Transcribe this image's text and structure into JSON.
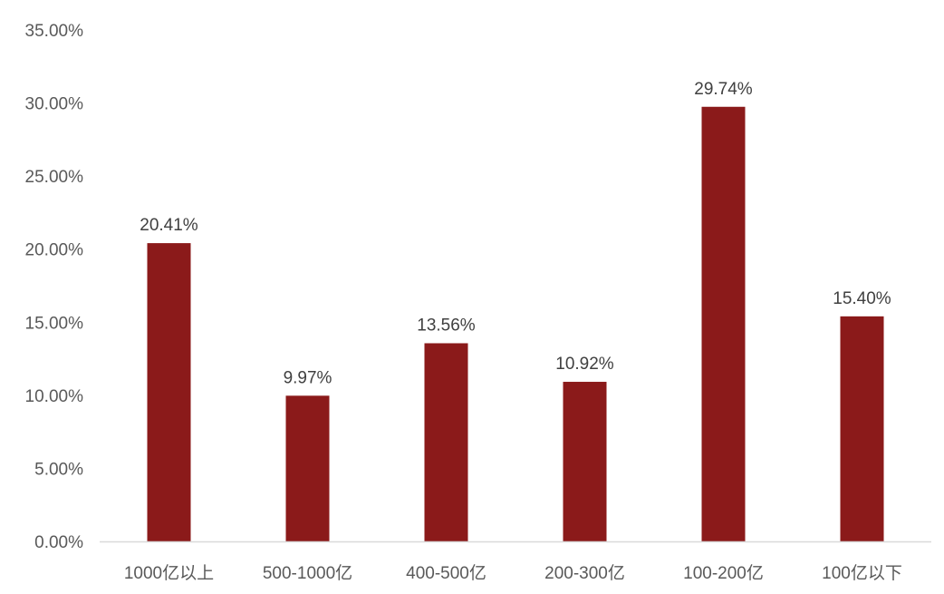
{
  "chart_data": {
    "type": "bar",
    "categories": [
      "1000亿以上",
      "500-1000亿",
      "400-500亿",
      "200-300亿",
      "100-200亿",
      "100亿以下"
    ],
    "values": [
      20.41,
      9.97,
      13.56,
      10.92,
      29.74,
      15.4
    ],
    "data_labels": [
      "20.41%",
      "9.97%",
      "13.56%",
      "10.92%",
      "29.74%",
      "15.40%"
    ],
    "y_ticks": [
      0,
      5,
      10,
      15,
      20,
      25,
      30,
      35
    ],
    "y_tick_labels": [
      "0.00%",
      "5.00%",
      "10.00%",
      "15.00%",
      "20.00%",
      "25.00%",
      "30.00%",
      "35.00%"
    ],
    "ylim": [
      0,
      35
    ],
    "grid": false,
    "legend": "none",
    "bar_color": "#8B1A1A",
    "axis_color": "#D9D9D9"
  }
}
